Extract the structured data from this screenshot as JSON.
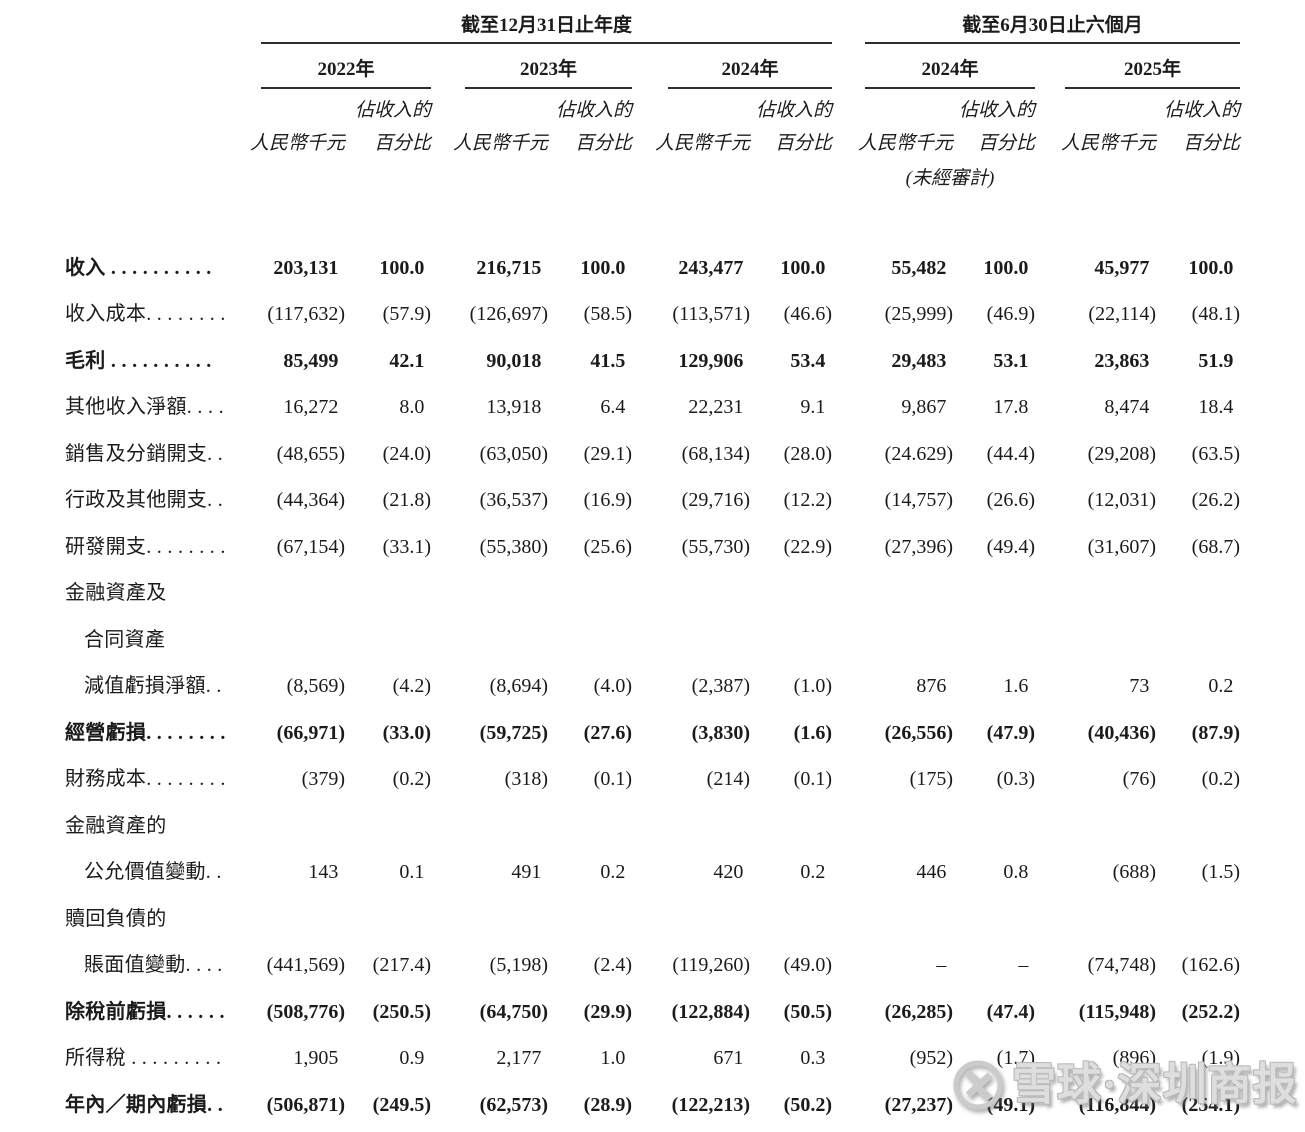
{
  "page": {
    "background_color": "#ffffff",
    "text_color": "#1b1b1b",
    "rule_color": "#2e2e2e"
  },
  "table": {
    "header": {
      "period_groups": [
        {
          "title": "截至12月31日止年度",
          "years": [
            "2022年",
            "2023年",
            "2024年"
          ]
        },
        {
          "title": "截至6月30日止六個月",
          "years": [
            "2024年",
            "2025年"
          ]
        }
      ],
      "unit_label": "人民幣千元",
      "pct_label_line1": "佔收入的",
      "pct_label_line2": "百分比",
      "unaudited_note": "(未經審計)"
    },
    "rows": [
      {
        "label": "收入 . . . . . . . . . .",
        "indent": false,
        "bold": true,
        "values": [
          "203,131",
          "100.0",
          "216,715",
          "100.0",
          "243,477",
          "100.0",
          "55,482",
          "100.0",
          "45,977",
          "100.0"
        ]
      },
      {
        "label": "收入成本. . . . . . . .",
        "indent": false,
        "bold": false,
        "values": [
          "(117,632)",
          "(57.9)",
          "(126,697)",
          "(58.5)",
          "(113,571)",
          "(46.6)",
          "(25,999)",
          "(46.9)",
          "(22,114)",
          "(48.1)"
        ]
      },
      {
        "label": "毛利 . . . . . . . . . .",
        "indent": false,
        "bold": true,
        "values": [
          "85,499",
          "42.1",
          "90,018",
          "41.5",
          "129,906",
          "53.4",
          "29,483",
          "53.1",
          "23,863",
          "51.9"
        ]
      },
      {
        "label": "其他收入淨額. . . .",
        "indent": false,
        "bold": false,
        "values": [
          "16,272",
          "8.0",
          "13,918",
          "6.4",
          "22,231",
          "9.1",
          "9,867",
          "17.8",
          "8,474",
          "18.4"
        ]
      },
      {
        "label": "銷售及分銷開支. .",
        "indent": false,
        "bold": false,
        "values": [
          "(48,655)",
          "(24.0)",
          "(63,050)",
          "(29.1)",
          "(68,134)",
          "(28.0)",
          "(24.629)",
          "(44.4)",
          "(29,208)",
          "(63.5)"
        ]
      },
      {
        "label": "行政及其他開支. .",
        "indent": false,
        "bold": false,
        "values": [
          "(44,364)",
          "(21.8)",
          "(36,537)",
          "(16.9)",
          "(29,716)",
          "(12.2)",
          "(14,757)",
          "(26.6)",
          "(12,031)",
          "(26.2)"
        ]
      },
      {
        "label": "研發開支. . . . . . . .",
        "indent": false,
        "bold": false,
        "values": [
          "(67,154)",
          "(33.1)",
          "(55,380)",
          "(25.6)",
          "(55,730)",
          "(22.9)",
          "(27,396)",
          "(49.4)",
          "(31,607)",
          "(68.7)"
        ]
      },
      {
        "label": "金融資產及",
        "indent": false,
        "bold": false,
        "values": []
      },
      {
        "label": "合同資產",
        "indent": true,
        "bold": false,
        "values": []
      },
      {
        "label": "減值虧損淨額. .",
        "indent": true,
        "bold": false,
        "values": [
          "(8,569)",
          "(4.2)",
          "(8,694)",
          "(4.0)",
          "(2,387)",
          "(1.0)",
          "876",
          "1.6",
          "73",
          "0.2"
        ]
      },
      {
        "label": "經營虧損. . . . . . . .",
        "indent": false,
        "bold": true,
        "values": [
          "(66,971)",
          "(33.0)",
          "(59,725)",
          "(27.6)",
          "(3,830)",
          "(1.6)",
          "(26,556)",
          "(47.9)",
          "(40,436)",
          "(87.9)"
        ]
      },
      {
        "label": "財務成本. . . . . . . .",
        "indent": false,
        "bold": false,
        "values": [
          "(379)",
          "(0.2)",
          "(318)",
          "(0.1)",
          "(214)",
          "(0.1)",
          "(175)",
          "(0.3)",
          "(76)",
          "(0.2)"
        ]
      },
      {
        "label": "金融資產的",
        "indent": false,
        "bold": false,
        "values": []
      },
      {
        "label": "公允價值變動. .",
        "indent": true,
        "bold": false,
        "values": [
          "143",
          "0.1",
          "491",
          "0.2",
          "420",
          "0.2",
          "446",
          "0.8",
          "(688)",
          "(1.5)"
        ]
      },
      {
        "label": "贖回負債的",
        "indent": false,
        "bold": false,
        "values": []
      },
      {
        "label": "賬面值變動. . . .",
        "indent": true,
        "bold": false,
        "values": [
          "(441,569)",
          "(217.4)",
          "(5,198)",
          "(2.4)",
          "(119,260)",
          "(49.0)",
          "–",
          "–",
          "(74,748)",
          "(162.6)"
        ]
      },
      {
        "label": "除稅前虧損. . . . . .",
        "indent": false,
        "bold": true,
        "values": [
          "(508,776)",
          "(250.5)",
          "(64,750)",
          "(29.9)",
          "(122,884)",
          "(50.5)",
          "(26,285)",
          "(47.4)",
          "(115,948)",
          "(252.2)"
        ]
      },
      {
        "label": "所得稅 . . . . . . . . .",
        "indent": false,
        "bold": false,
        "values": [
          "1,905",
          "0.9",
          "2,177",
          "1.0",
          "671",
          "0.3",
          "(952)",
          "(1.7)",
          "(896)",
          "(1.9)"
        ]
      },
      {
        "label": "年內／期內虧損. .",
        "indent": false,
        "bold": true,
        "values": [
          "(506,871)",
          "(249.5)",
          "(62,573)",
          "(28.9)",
          "(122,213)",
          "(50.2)",
          "(27,237)",
          "(49.1)",
          "(116,844)",
          "(254.1)"
        ]
      }
    ]
  },
  "watermark": {
    "icon": "xueqiu-snowball-icon",
    "text": "雪球·深圳商报",
    "color": "#dedede"
  }
}
